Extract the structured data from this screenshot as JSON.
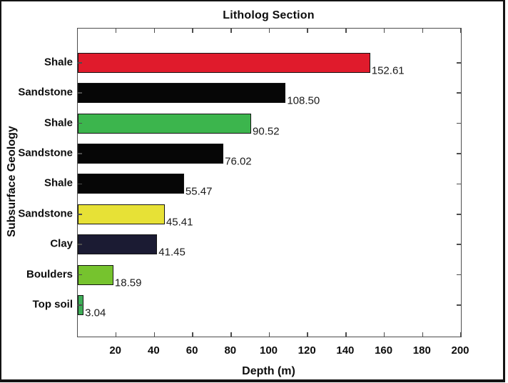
{
  "figure": {
    "title": "Litholog Section",
    "xlabel": "Depth (m)",
    "ylabel": "Subsurface Geology"
  },
  "chart_data": {
    "type": "bar",
    "orientation": "horizontal",
    "title": "Litholog Section",
    "xlabel": "Depth (m)",
    "ylabel": "Subsurface Geology",
    "categories": [
      "Shale",
      "Sandstone",
      "Shale",
      "Sandstone",
      "Shale",
      "Sandstone",
      "Clay",
      "Boulders",
      "Top soil"
    ],
    "values": [
      152.61,
      108.5,
      90.52,
      76.02,
      55.47,
      45.41,
      41.45,
      18.59,
      3.04
    ],
    "value_labels": [
      "152.61",
      "108.50",
      "90.52",
      "76.02",
      "55.47",
      "45.41",
      "41.45",
      "18.59",
      "3.04"
    ],
    "bar_colors": [
      "#e01b2c",
      "#060606",
      "#3cb54d",
      "#060606",
      "#060606",
      "#e7e136",
      "#1b1b33",
      "#76c32e",
      "#3fae58"
    ],
    "bar_edge_color": "#141414",
    "xlim": [
      0,
      200
    ],
    "xticks": [
      20,
      40,
      60,
      80,
      100,
      120,
      140,
      160,
      180,
      200
    ],
    "grid": false,
    "background_color": "#ffffff",
    "box": true,
    "tick_direction": "in"
  }
}
